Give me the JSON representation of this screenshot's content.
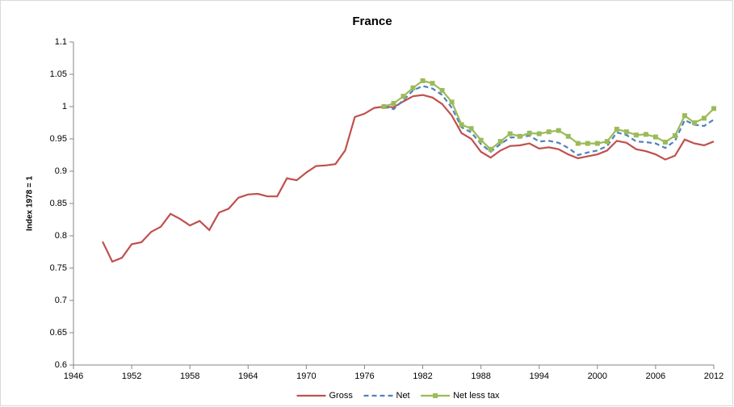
{
  "chart_data": {
    "type": "line",
    "title": "France",
    "y_label": "Index 1978 = 1",
    "x": [
      1949,
      1950,
      1951,
      1952,
      1953,
      1954,
      1955,
      1956,
      1957,
      1958,
      1959,
      1960,
      1961,
      1962,
      1963,
      1964,
      1965,
      1966,
      1967,
      1968,
      1969,
      1970,
      1971,
      1972,
      1973,
      1974,
      1975,
      1976,
      1977,
      1978,
      1979,
      1980,
      1981,
      1982,
      1983,
      1984,
      1985,
      1986,
      1987,
      1988,
      1989,
      1990,
      1991,
      1992,
      1993,
      1994,
      1995,
      1996,
      1997,
      1998,
      1999,
      2000,
      2001,
      2002,
      2003,
      2004,
      2005,
      2006,
      2007,
      2008,
      2009,
      2010,
      2011,
      2012
    ],
    "series": [
      {
        "name": "Gross",
        "color": "#c0504d",
        "dashed": false,
        "marker": null,
        "values": [
          0.791,
          0.76,
          0.766,
          0.787,
          0.79,
          0.806,
          0.814,
          0.834,
          0.826,
          0.816,
          0.823,
          0.809,
          0.836,
          0.842,
          0.859,
          0.864,
          0.865,
          0.861,
          0.861,
          0.889,
          0.886,
          0.898,
          0.908,
          0.909,
          0.911,
          0.932,
          0.984,
          0.989,
          0.998,
          1.0,
          0.999,
          1.008,
          1.016,
          1.018,
          1.014,
          1.004,
          0.986,
          0.959,
          0.95,
          0.93,
          0.921,
          0.932,
          0.939,
          0.94,
          0.943,
          0.935,
          0.937,
          0.934,
          0.926,
          0.92,
          0.923,
          0.926,
          0.932,
          0.947,
          0.944,
          0.934,
          0.931,
          0.926,
          0.918,
          0.924,
          0.949,
          0.943,
          0.94,
          0.946
        ]
      },
      {
        "name": "Net",
        "color": "#4f81bd",
        "dashed": true,
        "marker": null,
        "values": [
          null,
          null,
          null,
          null,
          null,
          null,
          null,
          null,
          null,
          null,
          null,
          null,
          null,
          null,
          null,
          null,
          null,
          null,
          null,
          null,
          null,
          null,
          null,
          null,
          null,
          null,
          null,
          null,
          null,
          1.0,
          0.996,
          1.01,
          1.025,
          1.032,
          1.028,
          1.018,
          0.998,
          0.968,
          0.96,
          0.942,
          0.93,
          0.942,
          0.952,
          0.953,
          0.955,
          0.946,
          0.947,
          0.944,
          0.936,
          0.925,
          0.929,
          0.932,
          0.939,
          0.96,
          0.956,
          0.946,
          0.945,
          0.943,
          0.936,
          0.947,
          0.979,
          0.972,
          0.97,
          0.98
        ]
      },
      {
        "name": "Net less tax",
        "color": "#9bbb59",
        "dashed": false,
        "marker": "square",
        "values": [
          null,
          null,
          null,
          null,
          null,
          null,
          null,
          null,
          null,
          null,
          null,
          null,
          null,
          null,
          null,
          null,
          null,
          null,
          null,
          null,
          null,
          null,
          null,
          null,
          null,
          null,
          null,
          null,
          null,
          1.0,
          1.005,
          1.016,
          1.029,
          1.04,
          1.036,
          1.025,
          1.007,
          0.972,
          0.966,
          0.948,
          0.934,
          0.946,
          0.958,
          0.954,
          0.959,
          0.958,
          0.961,
          0.963,
          0.954,
          0.943,
          0.943,
          0.943,
          0.946,
          0.965,
          0.961,
          0.956,
          0.957,
          0.953,
          0.945,
          0.955,
          0.986,
          0.975,
          0.982,
          0.997
        ]
      }
    ],
    "xlim": [
      1946,
      2012
    ],
    "xticks": [
      1946,
      1952,
      1958,
      1964,
      1970,
      1976,
      1982,
      1988,
      1994,
      2000,
      2006,
      2012
    ],
    "ylim": [
      0.6,
      1.1
    ],
    "yticks": [
      0.6,
      0.65,
      0.7,
      0.75,
      0.8,
      0.85,
      0.9,
      0.95,
      1,
      1.05,
      1.1
    ],
    "grid": false,
    "legend": "bottom"
  }
}
